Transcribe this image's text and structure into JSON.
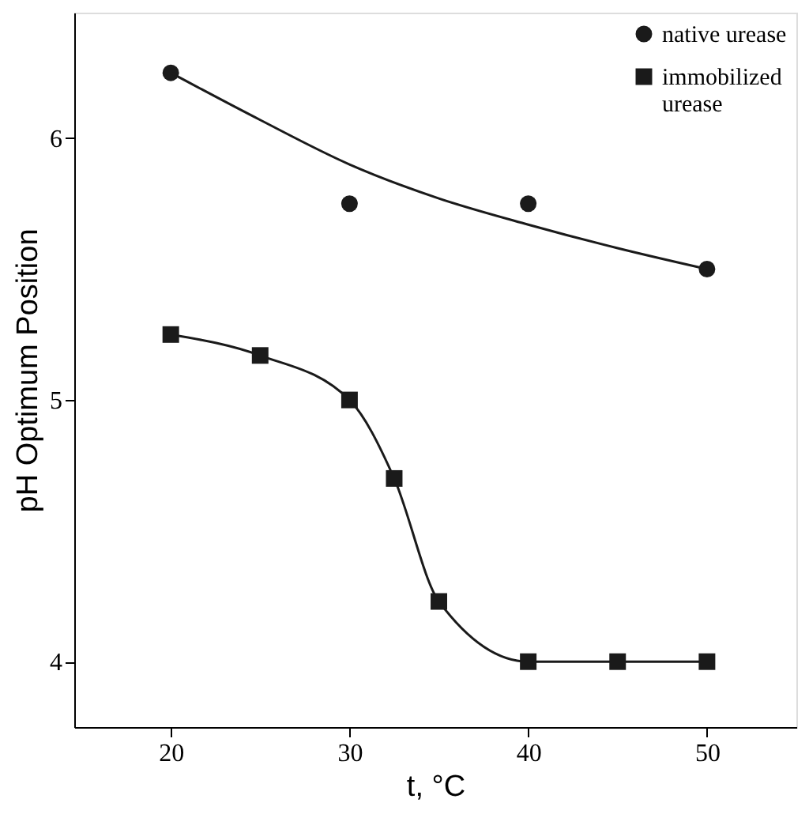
{
  "chart_data": {
    "type": "scatter",
    "xlabel": "t, °C",
    "ylabel": "pH Optimum Position",
    "xlim": [
      14.6,
      55
    ],
    "ylim": [
      3.75,
      6.48
    ],
    "xticks": [
      20,
      30,
      40,
      50
    ],
    "yticks": [
      4,
      5,
      6
    ],
    "grid": false,
    "legend": "top right",
    "series": [
      {
        "name": "native urease",
        "color": "#1a1a1a",
        "marker": "circle",
        "x": [
          20,
          30,
          40,
          50
        ],
        "values": [
          6.25,
          5.75,
          5.75,
          5.5
        ]
      },
      {
        "color": "#1a1a1a",
        "type": "line",
        "marker": "none",
        "x": [
          20,
          25,
          30,
          35,
          40,
          45,
          50
        ],
        "values": [
          6.25,
          6.07,
          5.9,
          5.77,
          5.67,
          5.58,
          5.5
        ]
      },
      {
        "name": "immobilized urease",
        "color": "#1a1a1a",
        "type": "line",
        "marker": "square",
        "x": [
          20,
          25,
          30,
          32.5,
          35,
          40,
          45,
          50
        ],
        "values": [
          5.25,
          5.17,
          5.0,
          4.7,
          4.23,
          4.0,
          4.0,
          4.0
        ]
      }
    ]
  }
}
